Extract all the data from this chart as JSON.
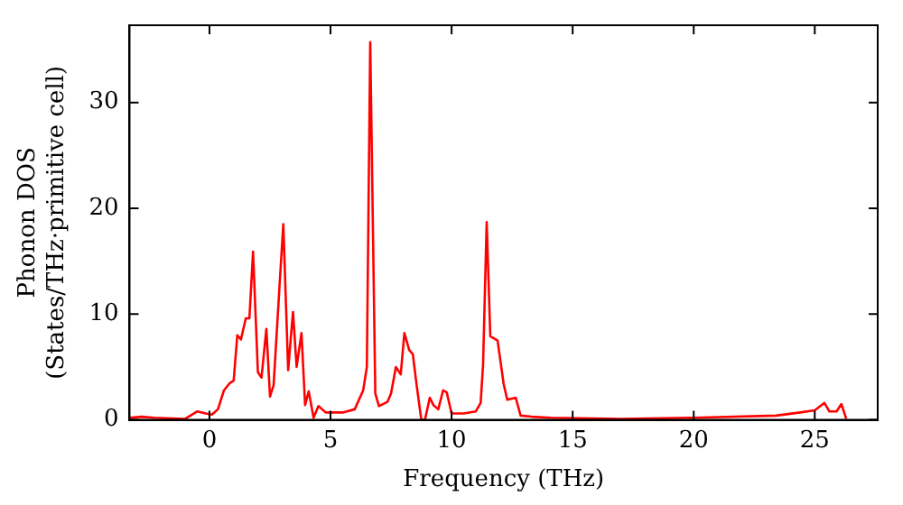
{
  "chart_data": {
    "type": "line",
    "xlabel": "Frequency (THz)",
    "ylabel": "Phonon DOS\n(States/THz·primitive cell)",
    "xlim": [
      -3.3,
      27.6
    ],
    "ylim": [
      0,
      37.3
    ],
    "xticks": [
      0,
      5,
      10,
      15,
      20,
      25
    ],
    "yticks": [
      0,
      10,
      20,
      30
    ],
    "grid": false,
    "legend": false,
    "marker": "none",
    "line_style": "solid",
    "series": [
      {
        "color": "#ff0000",
        "x": [
          -3.3,
          -2.8,
          -2.3,
          -1.0,
          -0.5,
          -0.15,
          0.1,
          0.35,
          0.6,
          0.85,
          1.0,
          1.15,
          1.3,
          1.5,
          1.65,
          1.8,
          2.0,
          2.15,
          2.35,
          2.5,
          2.65,
          2.9,
          3.05,
          3.25,
          3.45,
          3.6,
          3.8,
          3.95,
          4.1,
          4.3,
          4.5,
          4.8,
          5.5,
          6.0,
          6.35,
          6.5,
          6.64,
          6.85,
          7.0,
          7.35,
          7.5,
          7.7,
          7.9,
          8.05,
          8.25,
          8.4,
          8.55,
          8.75,
          8.9,
          9.1,
          9.25,
          9.45,
          9.65,
          9.8,
          10.0,
          10.5,
          11.0,
          11.2,
          11.3,
          11.45,
          11.6,
          11.9,
          12.15,
          12.3,
          12.65,
          12.85,
          13.3,
          14.1,
          17.0,
          20.0,
          23.4,
          24.4,
          25.0,
          25.4,
          25.6,
          25.9,
          26.1,
          26.3
        ],
        "values": [
          0.2,
          0.3,
          0.2,
          0.1,
          0.8,
          0.6,
          0.5,
          1.0,
          2.8,
          3.5,
          3.7,
          8.0,
          7.6,
          9.6,
          9.6,
          15.9,
          4.5,
          4.0,
          8.6,
          2.2,
          3.3,
          12.9,
          18.5,
          4.7,
          10.2,
          5.0,
          8.2,
          1.4,
          2.7,
          0.2,
          1.3,
          0.7,
          0.7,
          1.0,
          2.8,
          5.0,
          35.7,
          2.5,
          1.3,
          1.7,
          2.5,
          5.0,
          4.3,
          8.2,
          6.6,
          6.2,
          3.4,
          0,
          0,
          2.1,
          1.4,
          1.0,
          2.8,
          2.6,
          0.6,
          0.6,
          0.8,
          1.6,
          5.2,
          18.7,
          7.9,
          7.5,
          3.4,
          1.9,
          2.1,
          0.4,
          0.3,
          0.2,
          0.1,
          0.2,
          0.4,
          0.7,
          0.9,
          1.6,
          0.8,
          0.8,
          1.5,
          0.1
        ]
      }
    ]
  }
}
